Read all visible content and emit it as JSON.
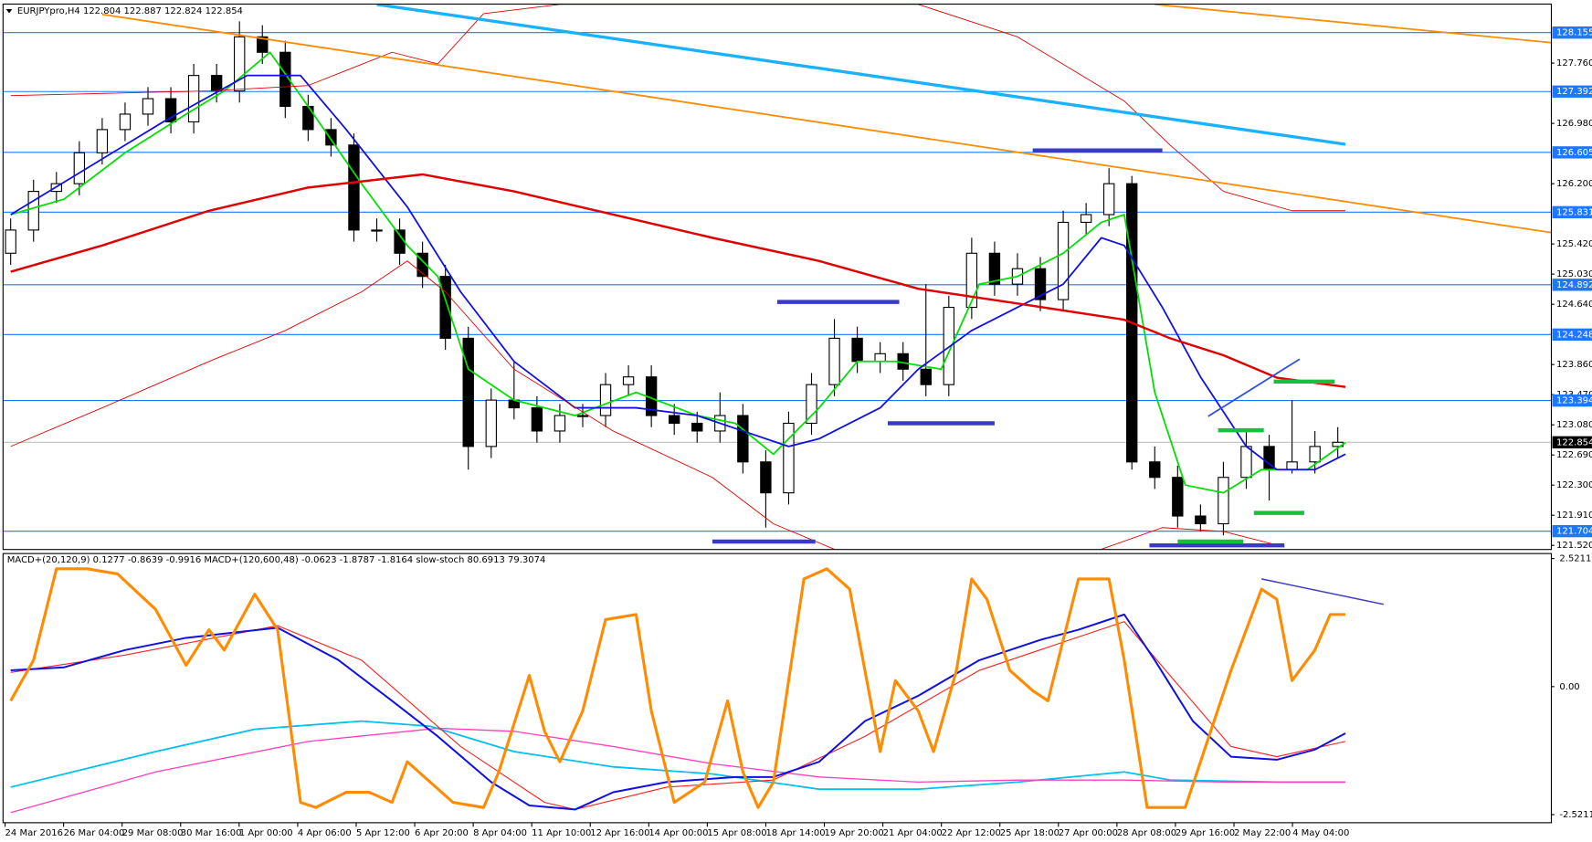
{
  "chart_data": [
    {
      "type": "candlestick",
      "title": "EURJPYpro,H4  122.804 122.887 122.824 122.854",
      "x": [
        0,
        3,
        6,
        9,
        12,
        15,
        18,
        21,
        24,
        27,
        30,
        33,
        36,
        39,
        42,
        45,
        48,
        51,
        54,
        57,
        60,
        63,
        66,
        69,
        72,
        75,
        78,
        81,
        84,
        87,
        90,
        93,
        96,
        99,
        102,
        105,
        108,
        111,
        114,
        117,
        120,
        123,
        126,
        129,
        132,
        135,
        138,
        141,
        144,
        147,
        150,
        153,
        156,
        159,
        162,
        165,
        168,
        171,
        174
      ],
      "open": [
        125.3,
        125.6,
        126.1,
        126.2,
        126.6,
        126.9,
        127.1,
        127.3,
        127.0,
        127.6,
        127.4,
        128.1,
        127.9,
        127.2,
        126.9,
        126.7,
        125.6,
        125.6,
        125.3,
        125.0,
        124.2,
        122.8,
        123.4,
        123.3,
        123.0,
        123.2,
        123.2,
        123.6,
        123.7,
        123.2,
        123.1,
        123.0,
        123.2,
        122.6,
        122.2,
        123.1,
        123.6,
        124.2,
        123.9,
        124.0,
        123.8,
        123.6,
        124.6,
        125.3,
        124.9,
        125.1,
        124.7,
        125.7,
        125.8,
        126.2,
        122.6,
        122.4,
        121.9,
        121.8,
        122.4,
        122.8,
        122.5,
        122.6,
        122.8
      ],
      "high": [
        125.75,
        126.25,
        126.35,
        126.75,
        127.05,
        127.25,
        127.45,
        127.45,
        127.75,
        127.75,
        128.3,
        128.25,
        128.05,
        127.35,
        127.05,
        126.85,
        125.75,
        125.75,
        125.45,
        125.15,
        124.35,
        123.55,
        123.9,
        123.45,
        123.35,
        123.35,
        123.75,
        123.85,
        123.85,
        123.35,
        123.25,
        123.5,
        123.35,
        122.75,
        123.25,
        123.75,
        124.45,
        124.35,
        124.15,
        124.15,
        124.9,
        124.75,
        125.5,
        125.45,
        125.3,
        125.25,
        125.85,
        125.95,
        126.4,
        126.3,
        122.8,
        122.55,
        122.05,
        122.6,
        123.0,
        122.95,
        123.4,
        123.0,
        123.05
      ],
      "low": [
        125.15,
        125.45,
        125.95,
        126.05,
        126.45,
        126.75,
        126.95,
        126.85,
        126.85,
        127.25,
        127.25,
        127.75,
        127.05,
        126.75,
        126.55,
        125.45,
        125.45,
        125.15,
        124.85,
        124.05,
        122.5,
        122.65,
        123.15,
        122.85,
        122.85,
        123.05,
        123.05,
        123.45,
        123.05,
        122.95,
        122.85,
        122.85,
        122.45,
        121.75,
        122.05,
        122.95,
        123.45,
        123.75,
        123.75,
        123.65,
        123.45,
        123.45,
        124.45,
        124.75,
        124.75,
        124.55,
        124.55,
        125.55,
        125.65,
        122.5,
        122.25,
        121.75,
        121.7,
        121.65,
        122.25,
        122.1,
        122.45,
        122.45,
        122.65
      ],
      "close": [
        125.6,
        126.1,
        126.2,
        126.6,
        126.9,
        127.1,
        127.3,
        127.0,
        127.6,
        127.4,
        128.1,
        127.9,
        127.2,
        126.9,
        126.7,
        125.6,
        125.6,
        125.3,
        125.0,
        124.2,
        122.8,
        123.4,
        123.3,
        123.0,
        123.2,
        123.2,
        123.6,
        123.7,
        123.2,
        123.1,
        123.0,
        123.2,
        122.6,
        122.2,
        123.1,
        123.6,
        124.2,
        123.9,
        124.0,
        123.8,
        123.6,
        124.6,
        125.3,
        124.9,
        125.1,
        124.7,
        125.7,
        125.8,
        126.2,
        122.6,
        122.4,
        121.9,
        121.8,
        122.4,
        122.8,
        122.5,
        122.6,
        122.8,
        122.854
      ],
      "up_color": "#ffffff",
      "down_color": "#000000",
      "xlim": [
        -1,
        202
      ],
      "ylim": [
        121.467,
        128.524
      ],
      "yticks": [
        {
          "value": 127.76,
          "label": "127.760"
        },
        {
          "value": 126.98,
          "label": "126.980"
        },
        {
          "value": 126.2,
          "label": "126.200"
        },
        {
          "value": 125.42,
          "label": "125.420"
        },
        {
          "value": 125.03,
          "label": "125.030"
        },
        {
          "value": 124.64,
          "label": "124.640"
        },
        {
          "value": 123.86,
          "label": "123.860"
        },
        {
          "value": 123.47,
          "label": "123.470"
        },
        {
          "value": 123.08,
          "label": "123.080"
        },
        {
          "value": 122.69,
          "label": "122.690"
        },
        {
          "value": 122.3,
          "label": "122.300"
        },
        {
          "value": 121.91,
          "label": "121.910"
        },
        {
          "value": 121.52,
          "label": "121.520"
        }
      ],
      "levels": [
        128.155,
        127.392,
        126.605,
        125.831,
        124.892,
        124.248,
        123.394,
        121.704
      ],
      "level_color": "#1e78ff",
      "last_price": 122.854,
      "lines": [
        {
          "color": "#00e000",
          "width": 1.6,
          "x": [
            0,
            7,
            15,
            23,
            28,
            34,
            39,
            46,
            52,
            56,
            60,
            66,
            74,
            82,
            90,
            95,
            100,
            106,
            111,
            116,
            122,
            127,
            132,
            138,
            143,
            146,
            150,
            154,
            159,
            164,
            170,
            175
          ],
          "values": [
            125.8,
            126.0,
            126.6,
            127.1,
            127.4,
            127.9,
            127.2,
            126.2,
            125.4,
            125.0,
            123.8,
            123.4,
            123.2,
            123.5,
            123.2,
            123.1,
            122.7,
            123.3,
            123.9,
            123.9,
            123.8,
            124.9,
            125.0,
            125.3,
            125.7,
            125.8,
            123.5,
            122.3,
            122.2,
            122.5,
            122.5,
            122.85
          ]
        },
        {
          "color": "#1010e0",
          "width": 1.6,
          "x": [
            0,
            10,
            20,
            31,
            38,
            44,
            52,
            59,
            66,
            74,
            82,
            90,
            96,
            102,
            106,
            114,
            119,
            126,
            132,
            138,
            143,
            146,
            151,
            156,
            162,
            166,
            171,
            175
          ],
          "values": [
            125.8,
            126.4,
            127.0,
            127.6,
            127.6,
            126.9,
            125.9,
            124.8,
            123.9,
            123.3,
            123.3,
            123.2,
            123.0,
            122.8,
            122.9,
            123.3,
            123.8,
            124.3,
            124.6,
            124.9,
            125.5,
            125.4,
            124.6,
            123.7,
            122.8,
            122.5,
            122.5,
            122.7
          ]
        },
        {
          "color": "#e00000",
          "width": 2.2,
          "x": [
            0,
            12,
            26,
            39,
            54,
            66,
            79,
            92,
            106,
            119,
            132,
            146,
            152,
            159,
            166,
            175
          ],
          "values": [
            125.06,
            125.4,
            125.85,
            126.15,
            126.32,
            126.1,
            125.8,
            125.5,
            125.2,
            124.84,
            124.65,
            124.44,
            124.2,
            123.98,
            123.69,
            123.57
          ]
        },
        {
          "color": "#e00000",
          "width": 0.8,
          "x": [
            0,
            26,
            39,
            50,
            56,
            62,
            72,
            119,
            132,
            146,
            152,
            159,
            168,
            175
          ],
          "values": [
            127.34,
            127.4,
            127.47,
            127.9,
            127.75,
            128.4,
            128.52,
            128.52,
            128.1,
            127.27,
            126.7,
            126.1,
            125.85,
            125.85
          ]
        },
        {
          "color": "#e00000",
          "width": 0.8,
          "x": [
            0,
            12,
            26,
            36,
            46,
            52,
            57,
            66,
            79,
            92,
            100,
            108,
            125,
            143,
            151,
            159,
            167
          ],
          "values": [
            122.8,
            123.3,
            123.9,
            124.3,
            124.8,
            125.2,
            124.8,
            123.8,
            123.0,
            122.4,
            121.8,
            121.47,
            null,
            121.47,
            121.75,
            121.7,
            121.5
          ]
        }
      ],
      "segments": [
        {
          "color": "#ff8c00",
          "width": 1.6,
          "x": [
            12,
            202.5
          ],
          "values": [
            128.39,
            125.56
          ]
        },
        {
          "color": "#ff8c00",
          "width": 1.6,
          "x": [
            150,
            202.5
          ],
          "values": [
            128.52,
            128.02
          ]
        },
        {
          "color": "#1ab2ff",
          "width": 3,
          "x": [
            48,
            175
          ],
          "values": [
            128.52,
            126.71
          ]
        },
        {
          "color": "#3050e0",
          "width": 1.6,
          "x": [
            157,
            169
          ],
          "values": [
            123.19,
            123.93
          ]
        },
        {
          "color": "#3a3ac8",
          "width": 4,
          "x": [
            134,
            151
          ],
          "values": [
            126.63,
            126.63
          ]
        },
        {
          "color": "#3a3ac8",
          "width": 4,
          "x": [
            100.5,
            116.5
          ],
          "values": [
            124.67,
            124.67
          ]
        },
        {
          "color": "#3a3ac8",
          "width": 4,
          "x": [
            115,
            129
          ],
          "values": [
            123.1,
            123.1
          ]
        },
        {
          "color": "#3a3ac8",
          "width": 4,
          "x": [
            92,
            105.5
          ],
          "values": [
            121.57,
            121.57
          ]
        },
        {
          "color": "#3a3ac8",
          "width": 4,
          "x": [
            149.3,
            167
          ],
          "values": [
            121.52,
            121.52
          ]
        },
        {
          "color": "#18c040",
          "width": 4,
          "x": [
            158.3,
            164.3
          ],
          "values": [
            123.01,
            123.01
          ]
        },
        {
          "color": "#18c040",
          "width": 4,
          "x": [
            165.6,
            173.6
          ],
          "values": [
            123.64,
            123.64
          ]
        },
        {
          "color": "#18c040",
          "width": 4,
          "x": [
            163,
            169.6
          ],
          "values": [
            121.94,
            121.94
          ]
        },
        {
          "color": "#18c040",
          "width": 4,
          "x": [
            153,
            161.6
          ],
          "values": [
            121.57,
            121.57
          ]
        }
      ]
    },
    {
      "type": "line",
      "title": "MACD+(20,120,9) 0.1277 -0.8639 -0.9916  MACD+(120,600,48) -0.0623 -1.8787 -1.8164  slow-stoch 80.6913 79.3074",
      "xlim": [
        -1,
        202
      ],
      "ylim": [
        -2.68,
        2.62
      ],
      "yticks": [
        2.5211,
        {
          "value": 0,
          "label": "0.00"
        },
        -2.5211
      ],
      "categories": [
        "24 Mar 2016",
        "26 Mar 04:00",
        "29 Mar 08:00",
        "30 Mar 16:00",
        "1 Apr 00:00",
        "4 Apr 06:00",
        "5 Apr 12:00",
        "6 Apr 20:00",
        "8 Apr 04:00",
        "11 Apr 10:00",
        "12 Apr 16:00",
        "14 Apr 00:00",
        "15 Apr 08:00",
        "18 Apr 14:00",
        "19 Apr 20:00",
        "21 Apr 04:00",
        "22 Apr 12:00",
        "25 Apr 18:00",
        "27 Apr 00:00",
        "28 Apr 08:00",
        "29 Apr 16:00",
        "2 May 22:00",
        "4 May 04:00"
      ],
      "series": [
        {
          "color": "#00c0f0",
          "width": 1.6,
          "x": [
            0,
            19,
            32,
            46,
            55,
            66,
            79,
            92,
            106,
            119,
            132,
            146,
            152,
            166,
            175
          ],
          "values": [
            -1.98,
            -1.28,
            -0.84,
            -0.68,
            -0.78,
            -1.28,
            -1.58,
            -1.72,
            -2.02,
            -2.02,
            -1.88,
            -1.68,
            -1.84,
            -1.88,
            -1.88
          ]
        },
        {
          "color": "#ff40c0",
          "width": 1.2,
          "x": [
            0,
            19,
            39,
            56,
            66,
            79,
            92,
            106,
            119,
            132,
            146,
            159,
            175
          ],
          "values": [
            -2.48,
            -1.68,
            -1.08,
            -0.82,
            -0.88,
            -1.18,
            -1.52,
            -1.78,
            -1.88,
            -1.84,
            -1.84,
            -1.88,
            -1.88
          ]
        },
        {
          "color": "#ff2020",
          "width": 1,
          "x": [
            0,
            15,
            35,
            46,
            59,
            70,
            74,
            86,
            100,
            112,
            127,
            146,
            152,
            160,
            166,
            175
          ],
          "values": [
            0.28,
            0.62,
            1.2,
            0.52,
            -1.18,
            -2.28,
            -2.42,
            -1.98,
            -1.84,
            -0.98,
            0.32,
            1.28,
            0.22,
            -1.18,
            -1.38,
            -1.08
          ]
        },
        {
          "color": "#1010e0",
          "width": 1.8,
          "x": [
            0,
            7,
            15,
            23,
            35,
            43,
            50,
            56,
            63,
            68,
            74,
            79,
            86,
            95,
            100,
            106,
            112,
            119,
            127,
            135,
            140,
            146,
            150,
            155,
            160,
            166,
            171,
            175
          ],
          "values": [
            0.32,
            0.38,
            0.72,
            0.96,
            1.16,
            0.52,
            -0.28,
            -0.98,
            -1.88,
            -2.34,
            -2.42,
            -2.08,
            -1.88,
            -1.78,
            -1.78,
            -1.48,
            -0.68,
            -0.18,
            0.52,
            0.92,
            1.12,
            1.42,
            0.52,
            -0.68,
            -1.38,
            -1.44,
            -1.24,
            -0.92
          ]
        },
        {
          "color": "#ff8c00",
          "width": 2.8,
          "x": [
            0,
            3,
            6,
            10,
            14,
            19,
            23,
            26,
            28,
            32,
            35,
            38,
            40,
            44,
            47,
            50,
            52,
            55,
            58,
            62,
            64,
            68,
            70,
            72,
            75,
            78,
            82,
            84,
            87,
            91,
            94,
            96,
            98,
            100,
            104,
            107,
            110,
            114,
            116,
            119,
            121,
            124,
            126,
            128,
            131,
            134,
            136,
            140,
            144,
            146,
            149,
            154,
            156,
            160,
            164,
            166,
            168,
            171,
            173,
            175
          ],
          "values": [
            -0.28,
            0.52,
            2.32,
            2.32,
            2.22,
            1.52,
            0.42,
            1.12,
            0.72,
            1.82,
            1.12,
            -2.28,
            -2.38,
            -2.08,
            -2.08,
            -2.28,
            -1.48,
            -1.88,
            -2.28,
            -2.38,
            -1.68,
            0.22,
            -0.88,
            -1.48,
            -0.48,
            1.32,
            1.42,
            -0.48,
            -2.28,
            -1.88,
            -0.28,
            -1.68,
            -2.38,
            -1.88,
            2.12,
            2.32,
            1.92,
            -1.28,
            0.12,
            -0.48,
            -1.28,
            0.32,
            2.12,
            1.72,
            0.32,
            -0.08,
            -0.28,
            2.12,
            2.12,
            0.52,
            -2.38,
            -2.38,
            -1.48,
            0.32,
            1.92,
            1.72,
            0.12,
            0.72,
            1.42,
            1.42
          ]
        }
      ],
      "segments": [
        {
          "color": "#4040c0",
          "width": 1.4,
          "x": [
            164,
            180
          ],
          "values": [
            2.12,
            1.62
          ]
        }
      ]
    }
  ]
}
